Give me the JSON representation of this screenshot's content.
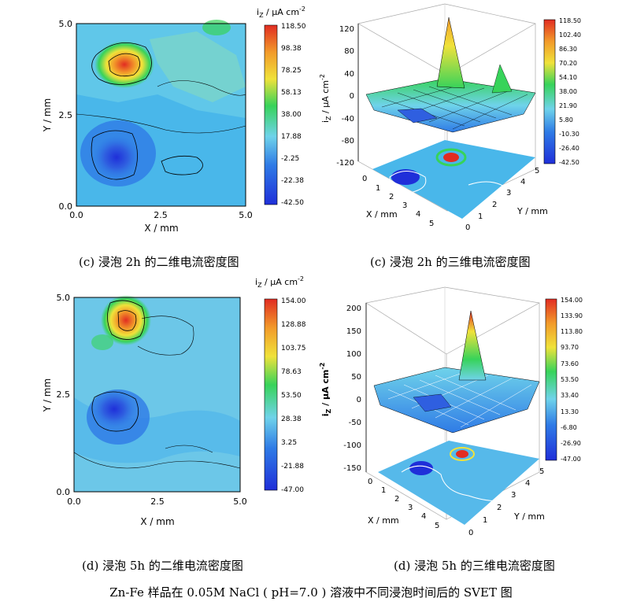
{
  "colors": {
    "deep_blue": "#1f2fd9",
    "blue": "#2f7be6",
    "light_blue": "#4fb1ea",
    "cyan": "#6fd3ea",
    "green": "#37d35a",
    "yellow": "#f0e23a",
    "orange": "#f29a2a",
    "red": "#e12c22"
  },
  "panels": {
    "c2d": {
      "caption": "(c)  浸泡 2h 的二维电流密度图",
      "cbar_title": "i",
      "cbar_sub": "Z",
      "cbar_unit": " / μA cm",
      "cbar_sup": "-2",
      "cbar_ticks": [
        "118.50",
        "98.38",
        "78.25",
        "58.13",
        "38.00",
        "17.88",
        "-2.25",
        "-22.38",
        "-42.50"
      ],
      "x_label": "X / mm",
      "y_label": "Y / mm",
      "x_ticks": [
        "0.0",
        "2.5",
        "5.0"
      ],
      "y_ticks": [
        "5.0",
        "2.5",
        "0.0"
      ]
    },
    "c3d": {
      "caption": "(c)  浸泡 2h 的三维电流密度图",
      "z_title": "i",
      "z_sub": "Z",
      "z_unit": " / μA cm",
      "z_sup": "-2",
      "z_ticks": [
        "120",
        "80",
        "40",
        "0",
        "-40",
        "-80",
        "-120"
      ],
      "cbar_ticks": [
        "118.50",
        "102.40",
        "86.30",
        "70.20",
        "54.10",
        "38.00",
        "21.90",
        "5.80",
        "-10.30",
        "-26.40",
        "-42.50"
      ],
      "x_label": "X / mm",
      "y_label": "Y / mm",
      "x_ticks": [
        "0",
        "1",
        "2",
        "3",
        "4",
        "5"
      ],
      "y_ticks": [
        "0",
        "1",
        "2",
        "3",
        "4",
        "5"
      ]
    },
    "d2d": {
      "caption": "(d)  浸泡 5h 的二维电流密度图",
      "cbar_title": "i",
      "cbar_sub": "Z",
      "cbar_unit": " / μA cm",
      "cbar_sup": "-2",
      "cbar_ticks": [
        "154.00",
        "128.88",
        "103.75",
        "78.63",
        "53.50",
        "28.38",
        "3.25",
        "-21.88",
        "-47.00"
      ],
      "x_label": "X / mm",
      "y_label": "Y / mm",
      "x_ticks": [
        "0.0",
        "2.5",
        "5.0"
      ],
      "y_ticks": [
        "5.0",
        "2.5",
        "0.0"
      ]
    },
    "d3d": {
      "caption": "(d)  浸泡 5h 的三维电流密度图",
      "z_title": "i",
      "z_sub": "Z",
      "z_unit": " / μA cm",
      "z_sup": "-2",
      "z_ticks": [
        "200",
        "150",
        "100",
        "50",
        "0",
        "-50",
        "-100",
        "-150"
      ],
      "cbar_ticks": [
        "154.00",
        "133.90",
        "113.80",
        "93.70",
        "73.60",
        "53.50",
        "33.40",
        "13.30",
        "-6.80",
        "-26.90",
        "-47.00"
      ],
      "x_label": "X / mm",
      "y_label": "Y / mm",
      "x_ticks": [
        "0",
        "1",
        "2",
        "3",
        "4",
        "5"
      ],
      "y_ticks": [
        "0",
        "1",
        "2",
        "3",
        "4",
        "5"
      ]
    }
  },
  "figure_caption": "Zn-Fe 样品在 0.05M NaCl ( pH=7.0 ) 溶液中不同浸泡时间后的 SVET 图"
}
